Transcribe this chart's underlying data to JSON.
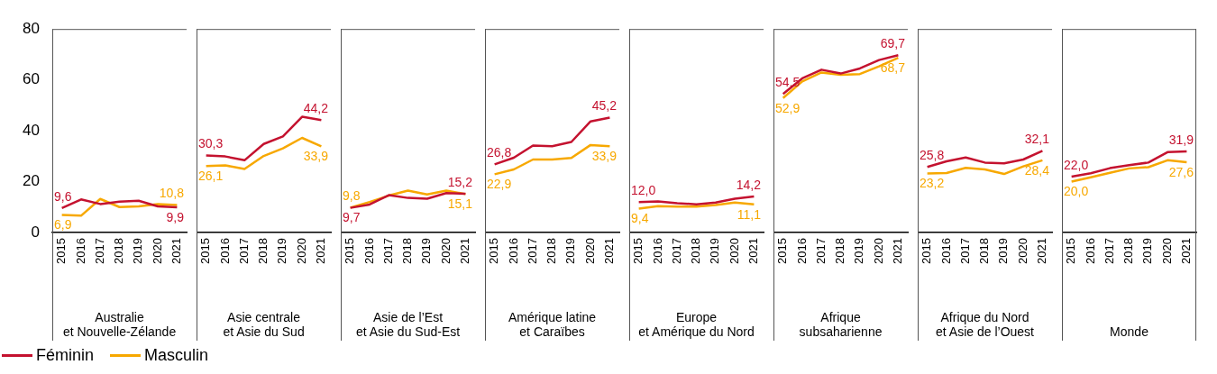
{
  "chart_data": [
    {
      "type": "line",
      "xlabel": "Australie\net Nouvelle-Zélande",
      "categories": [
        "2015",
        "2016",
        "2017",
        "2018",
        "2019",
        "2020",
        "2021"
      ],
      "ylim": [
        0,
        80
      ],
      "yticks": [
        0,
        20,
        40,
        60,
        80
      ],
      "marker": "none",
      "legend": "bottom left",
      "series": [
        {
          "name": "Féminin",
          "color": "#c4122f",
          "values": [
            9.6,
            13.0,
            11.2,
            12.1,
            12.5,
            10.3,
            9.9
          ],
          "value_labels": [
            "9,6",
            null,
            null,
            null,
            null,
            null,
            "9,9"
          ]
        },
        {
          "name": "Masculin",
          "color": "#f7a800",
          "values": [
            6.9,
            6.6,
            13.2,
            10.0,
            10.3,
            11.2,
            10.8
          ],
          "value_labels": [
            "6,9",
            null,
            null,
            null,
            null,
            null,
            "10,8"
          ]
        }
      ]
    },
    {
      "type": "line",
      "xlabel": "Asie centrale\net Asie du Sud",
      "categories": [
        "2015",
        "2016",
        "2017",
        "2018",
        "2019",
        "2020",
        "2021"
      ],
      "ylim": [
        0,
        80
      ],
      "yticks": [
        0,
        20,
        40,
        60,
        80
      ],
      "tick_labels": "x",
      "marker": "none",
      "series": [
        {
          "color": "#c4122f",
          "values": [
            30.3,
            29.9,
            28.4,
            34.8,
            37.8,
            45.5,
            44.2
          ],
          "value_labels": [
            "30,3",
            null,
            null,
            null,
            null,
            null,
            "44,2"
          ]
        },
        {
          "color": "#f7a800",
          "values": [
            26.1,
            26.4,
            25.0,
            30.1,
            33.1,
            37.2,
            33.9
          ],
          "value_labels": [
            "26,1",
            null,
            null,
            null,
            null,
            null,
            "33,9"
          ]
        }
      ]
    },
    {
      "type": "line",
      "xlabel": "Asie de l’Est\net Asie du Sud-Est",
      "categories": [
        "2015",
        "2016",
        "2017",
        "2018",
        "2019",
        "2020",
        "2021"
      ],
      "ylim": [
        0,
        80
      ],
      "yticks": [
        0,
        20,
        40,
        60,
        80
      ],
      "tick_labels": "x",
      "marker": "none",
      "series": [
        {
          "color": "#c4122f",
          "values": [
            9.7,
            11.0,
            14.7,
            13.6,
            13.3,
            15.5,
            15.2
          ],
          "value_labels": [
            "9,7",
            null,
            null,
            null,
            null,
            null,
            "15,2"
          ]
        },
        {
          "color": "#f7a800",
          "values": [
            9.8,
            12.0,
            14.5,
            16.5,
            15.0,
            16.5,
            15.1
          ],
          "value_labels": [
            "9,8",
            null,
            null,
            null,
            null,
            null,
            "15,1"
          ]
        }
      ]
    },
    {
      "type": "line",
      "xlabel": "Amérique latine\net Caraïbes",
      "categories": [
        "2015",
        "2016",
        "2017",
        "2018",
        "2019",
        "2020",
        "2021"
      ],
      "ylim": [
        0,
        80
      ],
      "yticks": [
        0,
        20,
        40,
        60,
        80
      ],
      "tick_labels": "x",
      "marker": "none",
      "series": [
        {
          "color": "#c4122f",
          "values": [
            26.8,
            29.4,
            34.2,
            33.9,
            35.6,
            43.7,
            45.2
          ],
          "value_labels": [
            "26,8",
            null,
            null,
            null,
            null,
            null,
            "45,2"
          ]
        },
        {
          "color": "#f7a800",
          "values": [
            22.9,
            24.8,
            28.7,
            28.7,
            29.3,
            34.4,
            33.9
          ],
          "value_labels": [
            "22,9",
            null,
            null,
            null,
            null,
            null,
            "33,9"
          ]
        }
      ]
    },
    {
      "type": "line",
      "xlabel": "Europe\net Amérique du Nord",
      "categories": [
        "2015",
        "2016",
        "2017",
        "2018",
        "2019",
        "2020",
        "2021"
      ],
      "ylim": [
        0,
        80
      ],
      "yticks": [
        0,
        20,
        40,
        60,
        80
      ],
      "tick_labels": "x",
      "marker": "none",
      "series": [
        {
          "color": "#c4122f",
          "values": [
            12.0,
            12.2,
            11.5,
            11.1,
            11.8,
            13.3,
            14.2
          ],
          "value_labels": [
            "12,0",
            null,
            null,
            null,
            null,
            null,
            "14,2"
          ]
        },
        {
          "color": "#f7a800",
          "values": [
            9.4,
            10.4,
            10.2,
            10.2,
            10.8,
            11.8,
            11.1
          ],
          "value_labels": [
            "9,4",
            null,
            null,
            null,
            null,
            null,
            "11,1"
          ]
        }
      ]
    },
    {
      "type": "line",
      "xlabel": "Afrique\nsubsaharienne",
      "categories": [
        "2015",
        "2016",
        "2017",
        "2018",
        "2019",
        "2020",
        "2021"
      ],
      "ylim": [
        0,
        80
      ],
      "yticks": [
        0,
        20,
        40,
        60,
        80
      ],
      "tick_labels": "x",
      "marker": "none",
      "series": [
        {
          "color": "#c4122f",
          "values": [
            54.5,
            60.6,
            64.0,
            62.5,
            64.5,
            67.8,
            69.7
          ],
          "value_labels": [
            "54,5",
            null,
            null,
            null,
            null,
            null,
            "69,7"
          ]
        },
        {
          "color": "#f7a800",
          "values": [
            52.9,
            59.4,
            62.9,
            62.0,
            62.3,
            65.3,
            68.7
          ],
          "value_labels": [
            "52,9",
            null,
            null,
            null,
            null,
            null,
            "68,7"
          ]
        }
      ]
    },
    {
      "type": "line",
      "xlabel": "Afrique du Nord\net Asie de l’Ouest",
      "categories": [
        "2015",
        "2016",
        "2017",
        "2018",
        "2019",
        "2020",
        "2021"
      ],
      "ylim": [
        0,
        80
      ],
      "yticks": [
        0,
        20,
        40,
        60,
        80
      ],
      "tick_labels": "x",
      "marker": "none",
      "series": [
        {
          "color": "#c4122f",
          "values": [
            25.8,
            28.0,
            29.5,
            27.5,
            27.2,
            28.7,
            32.1
          ],
          "value_labels": [
            "25,8",
            null,
            null,
            null,
            null,
            null,
            "32,1"
          ]
        },
        {
          "color": "#f7a800",
          "values": [
            23.2,
            23.4,
            25.4,
            24.8,
            23.0,
            26.0,
            28.4
          ],
          "value_labels": [
            "23,2",
            null,
            null,
            null,
            null,
            null,
            "28,4"
          ]
        }
      ]
    },
    {
      "type": "line",
      "xlabel": "Monde",
      "categories": [
        "2015",
        "2016",
        "2017",
        "2018",
        "2019",
        "2020",
        "2021"
      ],
      "ylim": [
        0,
        80
      ],
      "yticks": [
        0,
        20,
        40,
        60,
        80
      ],
      "tick_labels": "x",
      "marker": "none",
      "series": [
        {
          "color": "#c4122f",
          "values": [
            22.0,
            23.3,
            25.3,
            26.5,
            27.5,
            31.6,
            31.9
          ],
          "value_labels": [
            "22,0",
            null,
            null,
            null,
            null,
            null,
            "31,9"
          ]
        },
        {
          "color": "#f7a800",
          "values": [
            20.0,
            21.7,
            23.5,
            25.2,
            25.7,
            28.4,
            27.6
          ],
          "value_labels": [
            "20,0",
            null,
            null,
            null,
            null,
            null,
            "27,6"
          ]
        }
      ]
    }
  ]
}
